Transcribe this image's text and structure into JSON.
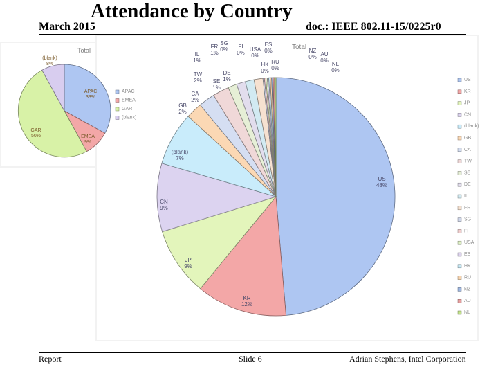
{
  "header": {
    "date": "March 2015",
    "title": "Attendance by Country",
    "doc": "doc.: IEEE 802.11-15/0225r0"
  },
  "footer": {
    "left": "Report",
    "center": "Slide 6",
    "right": "Adrian Stephens, Intel Corporation"
  },
  "chart_data": [
    {
      "type": "pie",
      "title": "Total",
      "legend_position": "right",
      "categories": [
        "APAC",
        "EMEA",
        "GAR",
        "(blank)"
      ],
      "values": [
        33,
        9,
        50,
        8
      ],
      "value_labels": [
        "33%",
        "9%",
        "50%",
        "8%"
      ],
      "colors": [
        "#aec6f2",
        "#f3a7a7",
        "#d8f2a7",
        "#d8cdef"
      ]
    },
    {
      "type": "pie",
      "title": "Total",
      "legend_position": "right",
      "categories": [
        "US",
        "KR",
        "JP",
        "CN",
        "(blank)",
        "GB",
        "CA",
        "TW",
        "SE",
        "DE",
        "IL",
        "FR",
        "SG",
        "FI",
        "USA",
        "ES",
        "HK",
        "RU",
        "NZ",
        "AU",
        "NL"
      ],
      "values": [
        48,
        12,
        9,
        9,
        7,
        2,
        2,
        2,
        1,
        1,
        1,
        1,
        0,
        0,
        0,
        0,
        0,
        0,
        0,
        0,
        0
      ],
      "value_labels": [
        "48%",
        "12%",
        "9%",
        "9%",
        "7%",
        "2%",
        "2%",
        "2%",
        "1%",
        "1%",
        "1%",
        "1%",
        "0%",
        "0%",
        "0%",
        "0%",
        "0%",
        "0%",
        "0%",
        "0%",
        "0%"
      ],
      "colors": [
        "#aec6f2",
        "#f3a7a7",
        "#e3f5bb",
        "#dcd3f0",
        "#c9ecfb",
        "#fbd8b4",
        "#d5def2",
        "#f0d8d8",
        "#e6efd6",
        "#e2dded",
        "#d2eaf2",
        "#f6e1d0",
        "#cfd7ea",
        "#f2cfcf",
        "#def0c4",
        "#ddd3ee",
        "#c6e8f5",
        "#f8d4ae",
        "#9fb7e2",
        "#e8a0a0",
        "#c4e48c"
      ]
    }
  ]
}
